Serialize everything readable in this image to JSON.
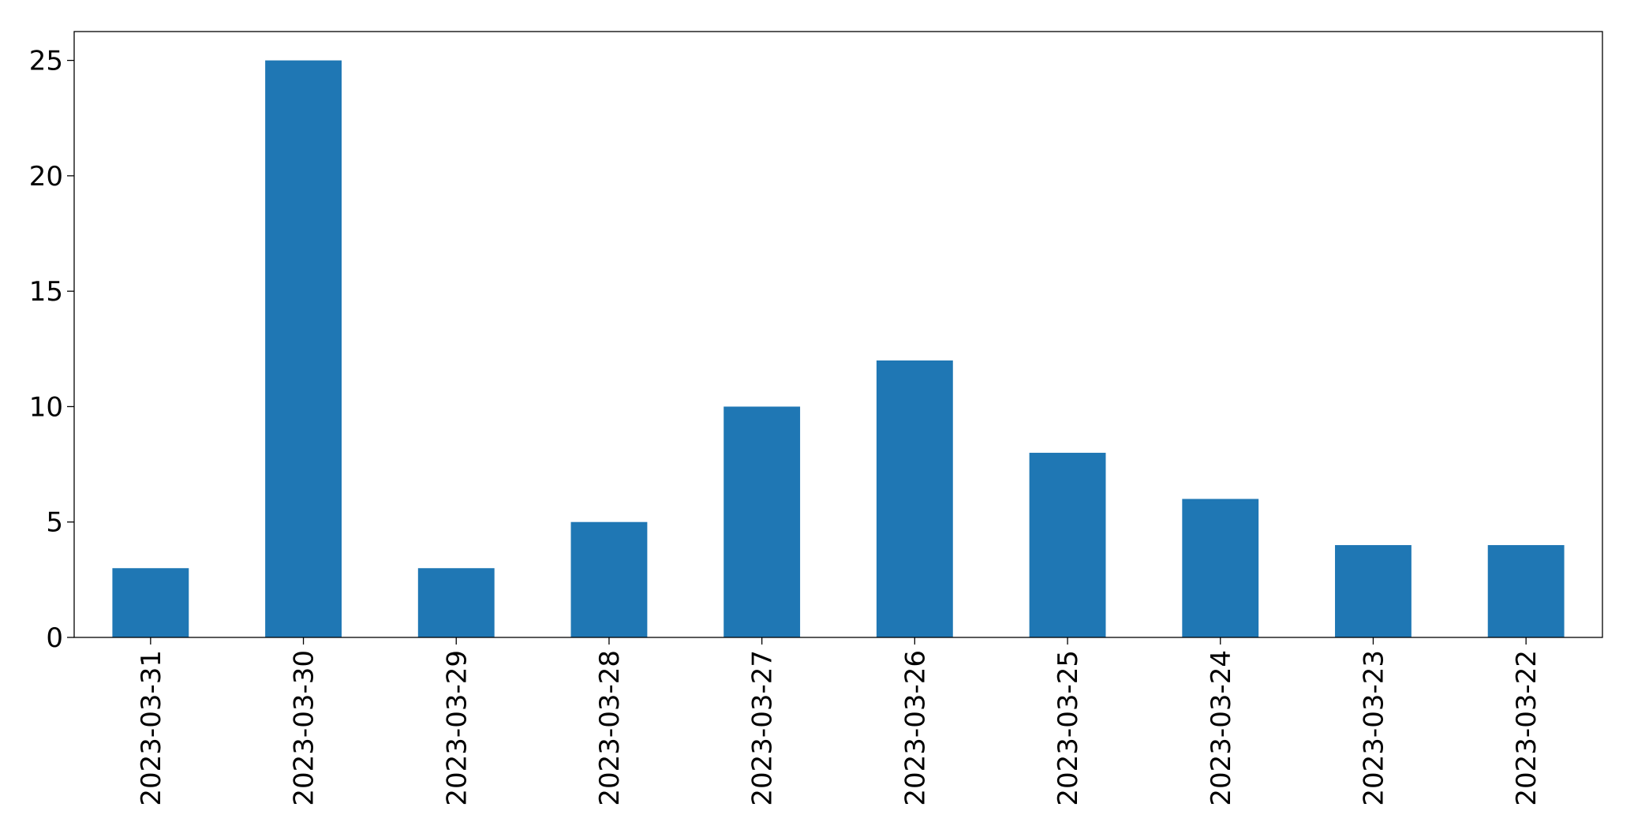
{
  "chart_data": {
    "type": "bar",
    "categories": [
      "2023-03-31",
      "2023-03-30",
      "2023-03-29",
      "2023-03-28",
      "2023-03-27",
      "2023-03-26",
      "2023-03-25",
      "2023-03-24",
      "2023-03-23",
      "2023-03-22"
    ],
    "values": [
      3,
      25,
      3,
      5,
      10,
      12,
      8,
      6,
      4,
      4
    ],
    "color": "#1f77b4",
    "ylim": [
      0,
      26.25
    ],
    "yticks": [
      0,
      5,
      10,
      15,
      20,
      25
    ],
    "grid": false
  }
}
